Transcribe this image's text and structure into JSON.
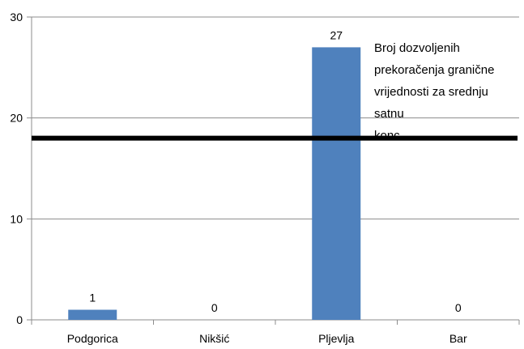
{
  "chart_data": {
    "type": "bar",
    "categories": [
      "Podgorica",
      "Nikšić",
      "Pljevlja",
      "Bar"
    ],
    "values": [
      1,
      0,
      27,
      0
    ],
    "data_labels": [
      "1",
      "0",
      "27",
      "0"
    ],
    "ylim": [
      0,
      30
    ],
    "yticks": [
      0,
      10,
      20,
      30
    ],
    "ytick_labels": [
      "0",
      "10",
      "20",
      "30"
    ],
    "grid": true,
    "bar_color": "#4f81bd",
    "reference_line": {
      "y": 18,
      "color": "#000000",
      "label_lines": [
        "Broj dozvoljenih",
        "prekoračenja granične",
        "vrijednosti za srednju satnu",
        "konc."
      ]
    }
  }
}
